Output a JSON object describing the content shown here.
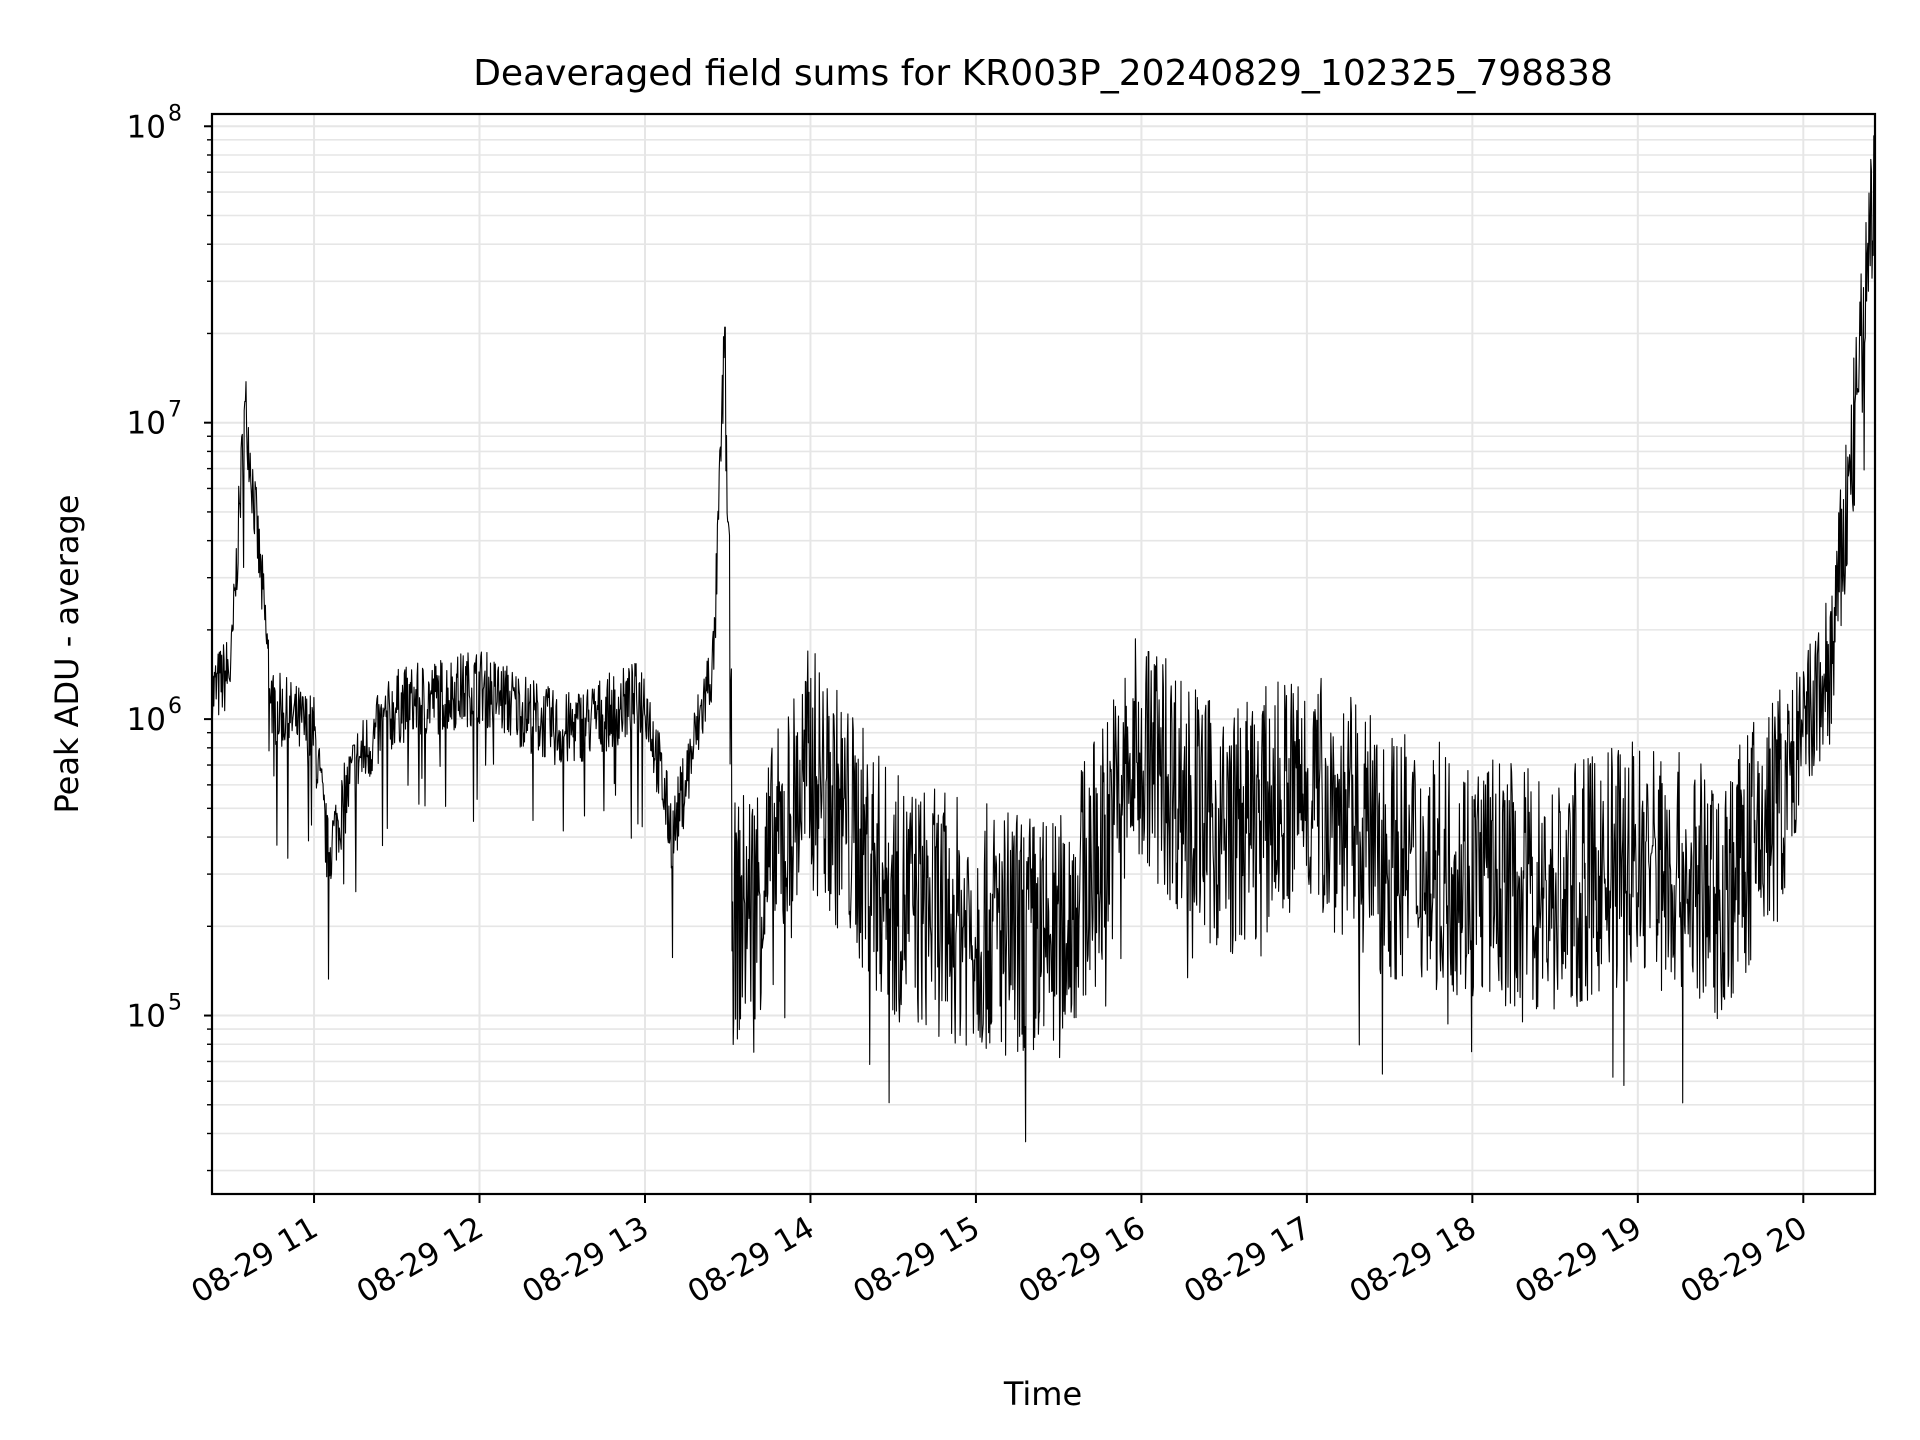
{
  "chart_data": {
    "type": "line",
    "title": "Deaveraged field sums for KR003P_20240829_102325_798838",
    "xlabel": "Time",
    "ylabel": "Peak ADU - average",
    "yscale": "log",
    "ylim": [
      25000,
      110000000
    ],
    "xlim": [
      "2024-08-29 10:23",
      "2024-08-29 20:26"
    ],
    "x_tick_labels": [
      "08-29 11",
      "08-29 12",
      "08-29 13",
      "08-29 14",
      "08-29 15",
      "08-29 16",
      "08-29 17",
      "08-29 18",
      "08-29 19",
      "08-29 20"
    ],
    "y_tick_labels": [
      {
        "value": 100000,
        "base": "10",
        "exp": "5"
      },
      {
        "value": 1000000,
        "base": "10",
        "exp": "6"
      },
      {
        "value": 10000000,
        "base": "10",
        "exp": "7"
      },
      {
        "value": 100000000,
        "base": "10",
        "exp": "8"
      }
    ],
    "grid": true,
    "line_color": "#000000",
    "grid_color": "#e6e6e6",
    "series": [
      {
        "x": [
          "2024-08-29 10:23",
          "2024-08-29 10:30",
          "2024-08-29 10:35",
          "2024-08-29 10:45",
          "2024-08-29 11:00",
          "2024-08-29 11:05",
          "2024-08-29 11:15",
          "2024-08-29 11:30",
          "2024-08-29 12:00",
          "2024-08-29 12:30",
          "2024-08-29 13:00",
          "2024-08-29 13:10",
          "2024-08-29 13:25",
          "2024-08-29 13:29",
          "2024-08-29 13:32",
          "2024-08-29 13:45",
          "2024-08-29 14:00",
          "2024-08-29 14:30",
          "2024-08-29 15:00",
          "2024-08-29 15:30",
          "2024-08-29 16:00",
          "2024-08-29 16:30",
          "2024-08-29 17:00",
          "2024-08-29 17:30",
          "2024-08-29 18:00",
          "2024-08-29 18:30",
          "2024-08-29 19:00",
          "2024-08-29 19:30",
          "2024-08-29 19:50",
          "2024-08-29 20:10",
          "2024-08-29 20:20",
          "2024-08-29 20:26"
        ],
        "y": [
          1200000,
          1500000,
          11800000,
          1100000,
          900000,
          350000,
          700000,
          1100000,
          1300000,
          900000,
          1200000,
          400000,
          1600000,
          21000000,
          200000,
          300000,
          700000,
          250000,
          200000,
          180000,
          800000,
          400000,
          600000,
          350000,
          300000,
          250000,
          350000,
          250000,
          500000,
          1500000,
          12700000,
          78000000
        ]
      }
    ]
  }
}
